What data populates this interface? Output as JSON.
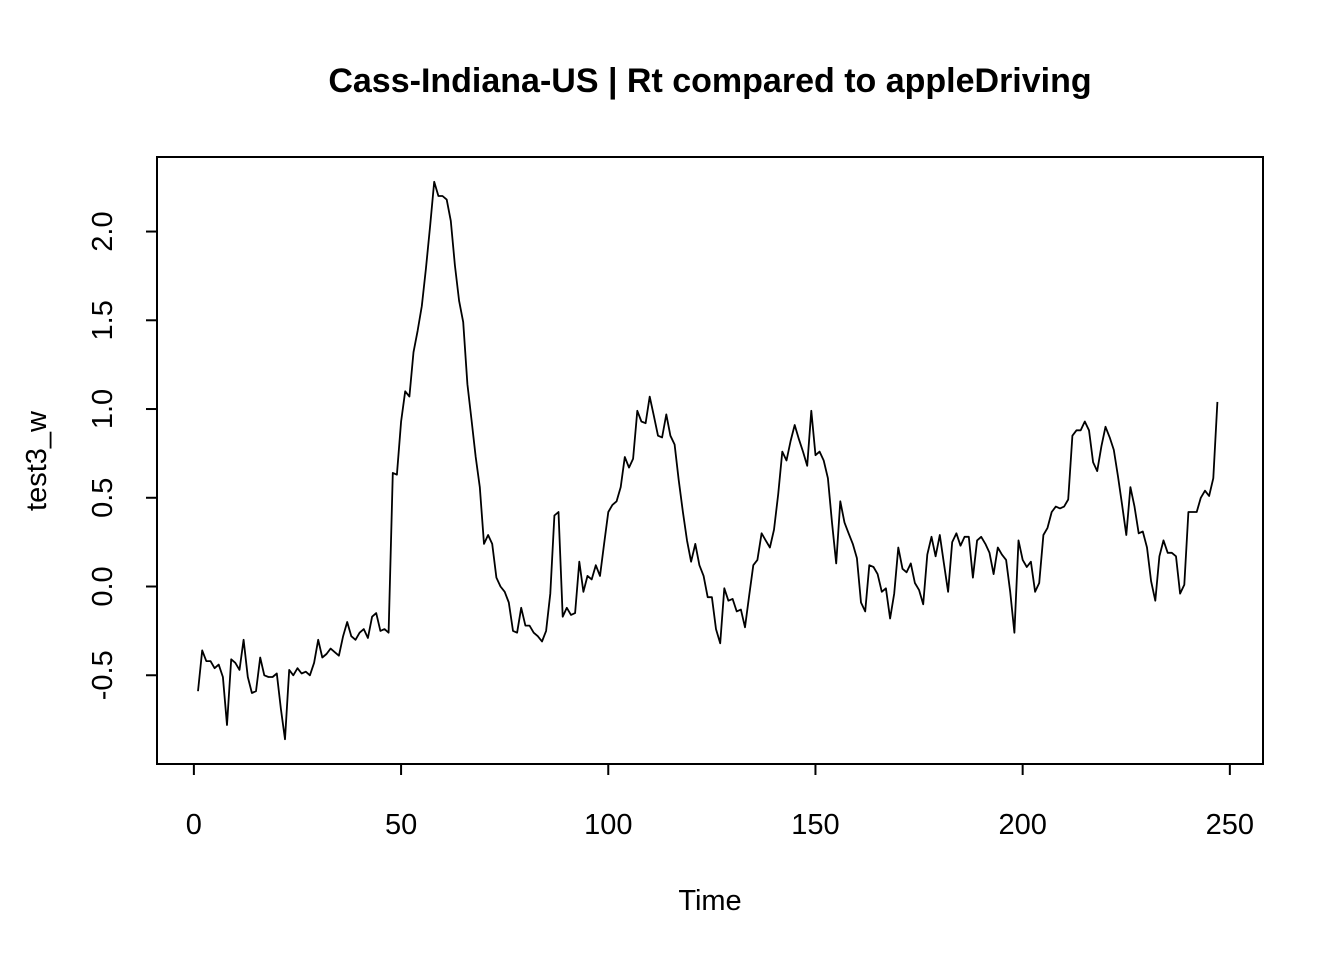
{
  "chart_data": {
    "type": "line",
    "title": "Cass-Indiana-US | Rt compared to appleDriving",
    "xlabel": "Time",
    "ylabel": "test3_w",
    "xlim": [
      -8.9,
      258
    ],
    "ylim": [
      -1.0,
      2.42
    ],
    "xticks": [
      0,
      50,
      100,
      150,
      200,
      250
    ],
    "yticks": [
      -0.5,
      0.0,
      0.5,
      1.0,
      1.5,
      2.0
    ],
    "xtick_labels": [
      "0",
      "50",
      "100",
      "150",
      "200",
      "250"
    ],
    "ytick_labels": [
      "-0.5",
      "0.0",
      "0.5",
      "1.0",
      "1.5",
      "2.0"
    ],
    "grid": false,
    "line_color": "#000000",
    "series": [
      {
        "values": [
          -0.59,
          -0.36,
          -0.42,
          -0.42,
          -0.46,
          -0.44,
          -0.51,
          -0.78,
          -0.41,
          -0.43,
          -0.47,
          -0.3,
          -0.51,
          -0.6,
          -0.59,
          -0.4,
          -0.5,
          -0.51,
          -0.51,
          -0.49,
          -0.69,
          -0.86,
          -0.47,
          -0.5,
          -0.46,
          -0.49,
          -0.48,
          -0.5,
          -0.43,
          -0.3,
          -0.4,
          -0.38,
          -0.35,
          -0.37,
          -0.39,
          -0.28,
          -0.2,
          -0.28,
          -0.3,
          -0.26,
          -0.24,
          -0.29,
          -0.17,
          -0.15,
          -0.25,
          -0.24,
          -0.26,
          0.64,
          0.63,
          0.93,
          1.1,
          1.07,
          1.32,
          1.44,
          1.58,
          1.79,
          2.03,
          2.28,
          2.2,
          2.2,
          2.18,
          2.06,
          1.81,
          1.61,
          1.49,
          1.14,
          0.94,
          0.73,
          0.56,
          0.24,
          0.29,
          0.24,
          0.05,
          0.0,
          -0.03,
          -0.09,
          -0.25,
          -0.26,
          -0.12,
          -0.22,
          -0.22,
          -0.26,
          -0.28,
          -0.31,
          -0.25,
          -0.04,
          0.4,
          0.42,
          -0.17,
          -0.12,
          -0.16,
          -0.15,
          0.14,
          -0.03,
          0.06,
          0.04,
          0.12,
          0.06,
          0.24,
          0.42,
          0.46,
          0.48,
          0.56,
          0.73,
          0.67,
          0.72,
          0.99,
          0.93,
          0.92,
          1.07,
          0.96,
          0.85,
          0.84,
          0.97,
          0.85,
          0.8,
          0.6,
          0.42,
          0.26,
          0.14,
          0.24,
          0.12,
          0.06,
          -0.06,
          -0.06,
          -0.24,
          -0.32,
          -0.01,
          -0.08,
          -0.07,
          -0.14,
          -0.13,
          -0.23,
          -0.05,
          0.12,
          0.15,
          0.3,
          0.26,
          0.22,
          0.32,
          0.52,
          0.76,
          0.71,
          0.82,
          0.91,
          0.83,
          0.76,
          0.68,
          0.99,
          0.74,
          0.76,
          0.71,
          0.61,
          0.36,
          0.13,
          0.48,
          0.36,
          0.3,
          0.24,
          0.16,
          -0.09,
          -0.14,
          0.12,
          0.11,
          0.07,
          -0.03,
          -0.01,
          -0.18,
          -0.04,
          0.22,
          0.1,
          0.08,
          0.13,
          0.02,
          -0.02,
          -0.1,
          0.18,
          0.28,
          0.17,
          0.29,
          0.13,
          -0.03,
          0.25,
          0.3,
          0.23,
          0.28,
          0.28,
          0.05,
          0.26,
          0.28,
          0.24,
          0.19,
          0.07,
          0.22,
          0.18,
          0.15,
          -0.03,
          -0.26,
          0.26,
          0.15,
          0.11,
          0.14,
          -0.03,
          0.02,
          0.29,
          0.33,
          0.42,
          0.45,
          0.44,
          0.45,
          0.49,
          0.85,
          0.88,
          0.88,
          0.93,
          0.88,
          0.7,
          0.65,
          0.79,
          0.9,
          0.84,
          0.77,
          0.62,
          0.46,
          0.29,
          0.56,
          0.45,
          0.3,
          0.31,
          0.22,
          0.03,
          -0.08,
          0.17,
          0.26,
          0.19,
          0.19,
          0.17,
          -0.04,
          0.01,
          0.42,
          0.42,
          0.42,
          0.5,
          0.54,
          0.51,
          0.61,
          1.04
        ]
      }
    ]
  }
}
